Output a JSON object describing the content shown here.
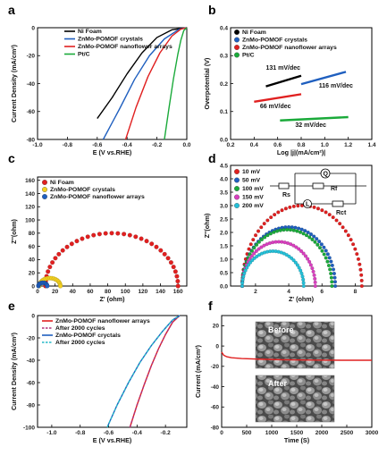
{
  "panel_labels": [
    "a",
    "b",
    "c",
    "d",
    "e",
    "f"
  ],
  "chart_data": [
    {
      "id": "a",
      "type": "line",
      "xlabel": "E (V vs.RHE)",
      "ylabel": "Current Density (mA/cm²)",
      "xlim": [
        -1.0,
        0.0
      ],
      "ylim": [
        -80,
        0
      ],
      "xticks": [
        "-1.0",
        "-0.8",
        "-0.6",
        "-0.4",
        "-0.2",
        "0.0"
      ],
      "yticks": [
        "-80",
        "-60",
        "-40",
        "-20",
        "0"
      ],
      "legend_position": "top-left",
      "series": [
        {
          "name": "Ni Foam",
          "color": "#000000",
          "x": [
            -0.6,
            -0.5,
            -0.4,
            -0.3,
            -0.2,
            -0.1,
            0.0
          ],
          "y": [
            -65,
            -50,
            -33,
            -18,
            -7,
            -1.5,
            0
          ]
        },
        {
          "name": "ZnMo-POMOF crystals",
          "color": "#1f5fbf",
          "x": [
            -0.56,
            -0.45,
            -0.35,
            -0.25,
            -0.15,
            -0.05,
            0.0
          ],
          "y": [
            -80,
            -58,
            -37,
            -20,
            -8,
            -1,
            0
          ]
        },
        {
          "name": "ZnMo-POMOF nanoflower arrays",
          "color": "#e02020",
          "x": [
            -0.41,
            -0.34,
            -0.26,
            -0.18,
            -0.1,
            -0.04,
            0.0
          ],
          "y": [
            -80,
            -57,
            -35,
            -18,
            -6,
            -1,
            0
          ]
        },
        {
          "name": "Pt/C",
          "color": "#1aaa3a",
          "x": [
            -0.15,
            -0.12,
            -0.09,
            -0.06,
            -0.04,
            -0.02,
            0.0
          ],
          "y": [
            -80,
            -58,
            -37,
            -19,
            -9,
            -2,
            0
          ]
        }
      ]
    },
    {
      "id": "b",
      "type": "line",
      "xlabel": "Log |j|(mA/cm²)|",
      "ylabel": "Overpotential (V)",
      "xlim": [
        0.2,
        1.4
      ],
      "ylim": [
        0,
        0.4
      ],
      "xticks": [
        "0.2",
        "0.4",
        "0.6",
        "0.8",
        "1.0",
        "1.2",
        "1.4"
      ],
      "yticks": [
        "0.0",
        "0.1",
        "0.2",
        "0.3",
        "0.4"
      ],
      "legend_position": "top-left",
      "series": [
        {
          "name": "Ni Foam",
          "color": "#000000",
          "x": [
            0.5,
            0.8
          ],
          "y": [
            0.19,
            0.228
          ]
        },
        {
          "name": "ZnMo-POMOF crystals",
          "color": "#1f5fbf",
          "x": [
            0.8,
            1.18
          ],
          "y": [
            0.198,
            0.242
          ]
        },
        {
          "name": "ZnMo-POMOF nanoflower arrays",
          "color": "#e02020",
          "x": [
            0.4,
            0.8
          ],
          "y": [
            0.135,
            0.162
          ]
        },
        {
          "name": "Pt/C",
          "color": "#1aaa3a",
          "x": [
            0.62,
            1.2
          ],
          "y": [
            0.068,
            0.08
          ]
        }
      ],
      "annotations": [
        {
          "text": "131 mV/dec",
          "x": 0.5,
          "y": 0.25
        },
        {
          "text": "116 mV/dec",
          "x": 0.95,
          "y": 0.185
        },
        {
          "text": "66 mV/dec",
          "x": 0.45,
          "y": 0.112
        },
        {
          "text": "32 mV/dec",
          "x": 0.75,
          "y": 0.045
        }
      ]
    },
    {
      "id": "c",
      "type": "scatter",
      "xlabel": "Z' (ohm)",
      "ylabel": "Z''(ohm)",
      "xlim": [
        0,
        170
      ],
      "ylim": [
        0,
        165
      ],
      "xticks": [
        "0",
        "20",
        "40",
        "60",
        "80",
        "100",
        "120",
        "140",
        "160"
      ],
      "yticks": [
        "0",
        "20",
        "40",
        "60",
        "80",
        "100",
        "120",
        "140",
        "160"
      ],
      "legend_position": "top-left",
      "series": [
        {
          "name": "Ni Foam",
          "color": "#e02020",
          "shape": "arc",
          "center": 87,
          "radius": 78,
          "x_start": 9,
          "x_end": 160,
          "peak": 80,
          "n": 34
        },
        {
          "name": "ZnMo-POMOF crystals",
          "color": "#f3d020",
          "shape": "arc",
          "center": 14,
          "radius": 12,
          "x_start": 2,
          "x_end": 26,
          "peak": 12,
          "n": 16
        },
        {
          "name": "ZnMo-POMOF nanoflower arrays",
          "color": "#1f5fbf",
          "shape": "arc",
          "center": 6,
          "radius": 5,
          "x_start": 1,
          "x_end": 11,
          "peak": 5,
          "n": 12
        }
      ]
    },
    {
      "id": "d",
      "type": "scatter",
      "xlabel": "Z' (ohm)",
      "ylabel": "Z''(ohm)",
      "xlim": [
        0.5,
        9
      ],
      "ylim": [
        0,
        4.5
      ],
      "xticks": [
        "2",
        "4",
        "6",
        "8"
      ],
      "yticks": [
        "0.0",
        "0.5",
        "1.0",
        "1.5",
        "2.0",
        "2.5",
        "3.0",
        "3.5",
        "4.0",
        "4.5"
      ],
      "legend_position": "top-left",
      "series": [
        {
          "name": "10 mV",
          "color": "#e02020",
          "shape": "arc",
          "x_start": 1.2,
          "x_end": 8.4,
          "peak": 3.0,
          "n": 46
        },
        {
          "name": "50 mV",
          "color": "#1f5fbf",
          "shape": "arc",
          "x_start": 1.2,
          "x_end": 6.8,
          "peak": 2.2,
          "n": 44
        },
        {
          "name": "100 mV",
          "color": "#1aaa3a",
          "shape": "arc",
          "x_start": 1.2,
          "x_end": 6.6,
          "peak": 2.1,
          "n": 42
        },
        {
          "name": "150 mV",
          "color": "#d93fbf",
          "shape": "arc",
          "x_start": 1.2,
          "x_end": 5.6,
          "peak": 1.65,
          "n": 38
        },
        {
          "name": "200 mV",
          "color": "#25c0d8",
          "shape": "arc",
          "x_start": 1.2,
          "x_end": 4.9,
          "peak": 1.3,
          "n": 34
        }
      ],
      "circuit_labels": [
        "Q",
        "Rs",
        "Rf",
        "L",
        "Rct"
      ]
    },
    {
      "id": "e",
      "type": "line",
      "xlabel": "E (V vs.RHE)",
      "ylabel": "Current Density (mA/cm²)",
      "xlim": [
        -1.1,
        -0.05
      ],
      "ylim": [
        -100,
        0
      ],
      "xticks": [
        "-1.0",
        "-0.8",
        "-0.6",
        "-0.4",
        "-0.2"
      ],
      "yticks": [
        "-100",
        "-80",
        "-60",
        "-40",
        "-20",
        "0"
      ],
      "legend_position": "top-left",
      "series": [
        {
          "name": "ZnMo-POMOF nanoflower arrays",
          "color": "#e02020",
          "dash": false,
          "x": [
            -0.45,
            -0.4,
            -0.35,
            -0.3,
            -0.25,
            -0.2,
            -0.15,
            -0.1
          ],
          "y": [
            -100,
            -80,
            -62,
            -45,
            -30,
            -17,
            -6,
            0
          ]
        },
        {
          "name": "After 2000 cycles",
          "color": "#b0307a",
          "dash": true,
          "x": [
            -0.45,
            -0.4,
            -0.35,
            -0.3,
            -0.25,
            -0.2,
            -0.15,
            -0.1
          ],
          "y": [
            -100,
            -80,
            -62,
            -45,
            -30,
            -17,
            -6,
            0
          ]
        },
        {
          "name": "ZnMo-POMOF cryctals",
          "color": "#1f5fbf",
          "dash": false,
          "x": [
            -0.61,
            -0.54,
            -0.46,
            -0.38,
            -0.3,
            -0.22,
            -0.15,
            -0.1
          ],
          "y": [
            -100,
            -80,
            -60,
            -42,
            -27,
            -14,
            -4,
            0
          ]
        },
        {
          "name": "After 2000 cycles",
          "color": "#25b8c8",
          "dash": true,
          "x": [
            -0.61,
            -0.54,
            -0.46,
            -0.38,
            -0.3,
            -0.22,
            -0.15,
            -0.1
          ],
          "y": [
            -100,
            -80,
            -60,
            -42,
            -27,
            -14,
            -4,
            0
          ]
        }
      ]
    },
    {
      "id": "f",
      "type": "line",
      "xlabel": "Time (S)",
      "ylabel": "Current (mA/cm²)",
      "xlim": [
        0,
        3000
      ],
      "ylim": [
        -80,
        30
      ],
      "xticks": [
        "0",
        "500",
        "1000",
        "1500",
        "2000",
        "2500",
        "3000"
      ],
      "yticks": [
        "-80",
        "-60",
        "-40",
        "-20",
        "0",
        "20"
      ],
      "series": [
        {
          "name": "",
          "color": "#e02020",
          "x": [
            0,
            40,
            100,
            200,
            400,
            800,
            1200,
            1800,
            2400,
            3000
          ],
          "y": [
            -6,
            -9,
            -10.5,
            -11.5,
            -12.3,
            -13,
            -13.5,
            -13.8,
            -14,
            -14
          ]
        }
      ],
      "insets": [
        "Before",
        "After"
      ]
    }
  ]
}
